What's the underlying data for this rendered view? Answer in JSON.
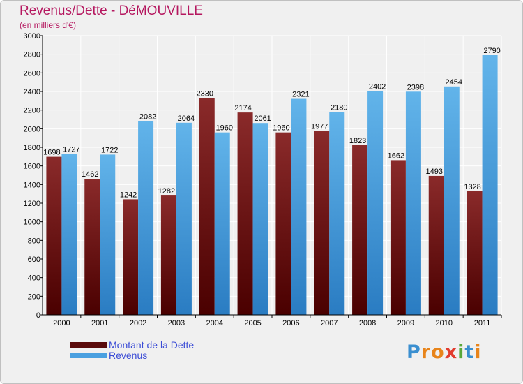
{
  "title": "Revenus/Dette - DéMOUVILLE",
  "subtitle": "(en milliers d'€)",
  "colors": {
    "debt": "#7a1a1a",
    "debt_dark": "#4a0000",
    "revenue": "#5aaee6",
    "revenue_dark": "#2e7fc4",
    "title": "#b5175f",
    "legend_text": "#3b4cd6"
  },
  "logo": {
    "letters": [
      "P",
      "r",
      "o",
      "x",
      "i",
      "t",
      "i"
    ],
    "colors": [
      "#3a8fd0",
      "#e8841a",
      "#e8841a",
      "#e23c2e",
      "#5aa83a",
      "#3a8fd0",
      "#e8841a"
    ]
  },
  "chart_data": {
    "type": "bar",
    "categories": [
      "2000",
      "2001",
      "2002",
      "2003",
      "2004",
      "2005",
      "2006",
      "2007",
      "2008",
      "2009",
      "2010",
      "2011"
    ],
    "series": [
      {
        "name": "Montant de la Dette",
        "values": [
          1698,
          1462,
          1242,
          1282,
          2330,
          2174,
          1960,
          1977,
          1823,
          1662,
          1493,
          1328
        ]
      },
      {
        "name": "Revenus",
        "values": [
          1727,
          1722,
          2082,
          2064,
          1960,
          2061,
          2321,
          2180,
          2402,
          2398,
          2454,
          2790
        ]
      }
    ],
    "ylim": [
      0,
      3000
    ],
    "yticks": [
      0,
      200,
      400,
      600,
      800,
      1000,
      1200,
      1400,
      1600,
      1800,
      2000,
      2200,
      2400,
      2600,
      2800,
      3000
    ],
    "grid": true,
    "legend": "bottom-left"
  }
}
